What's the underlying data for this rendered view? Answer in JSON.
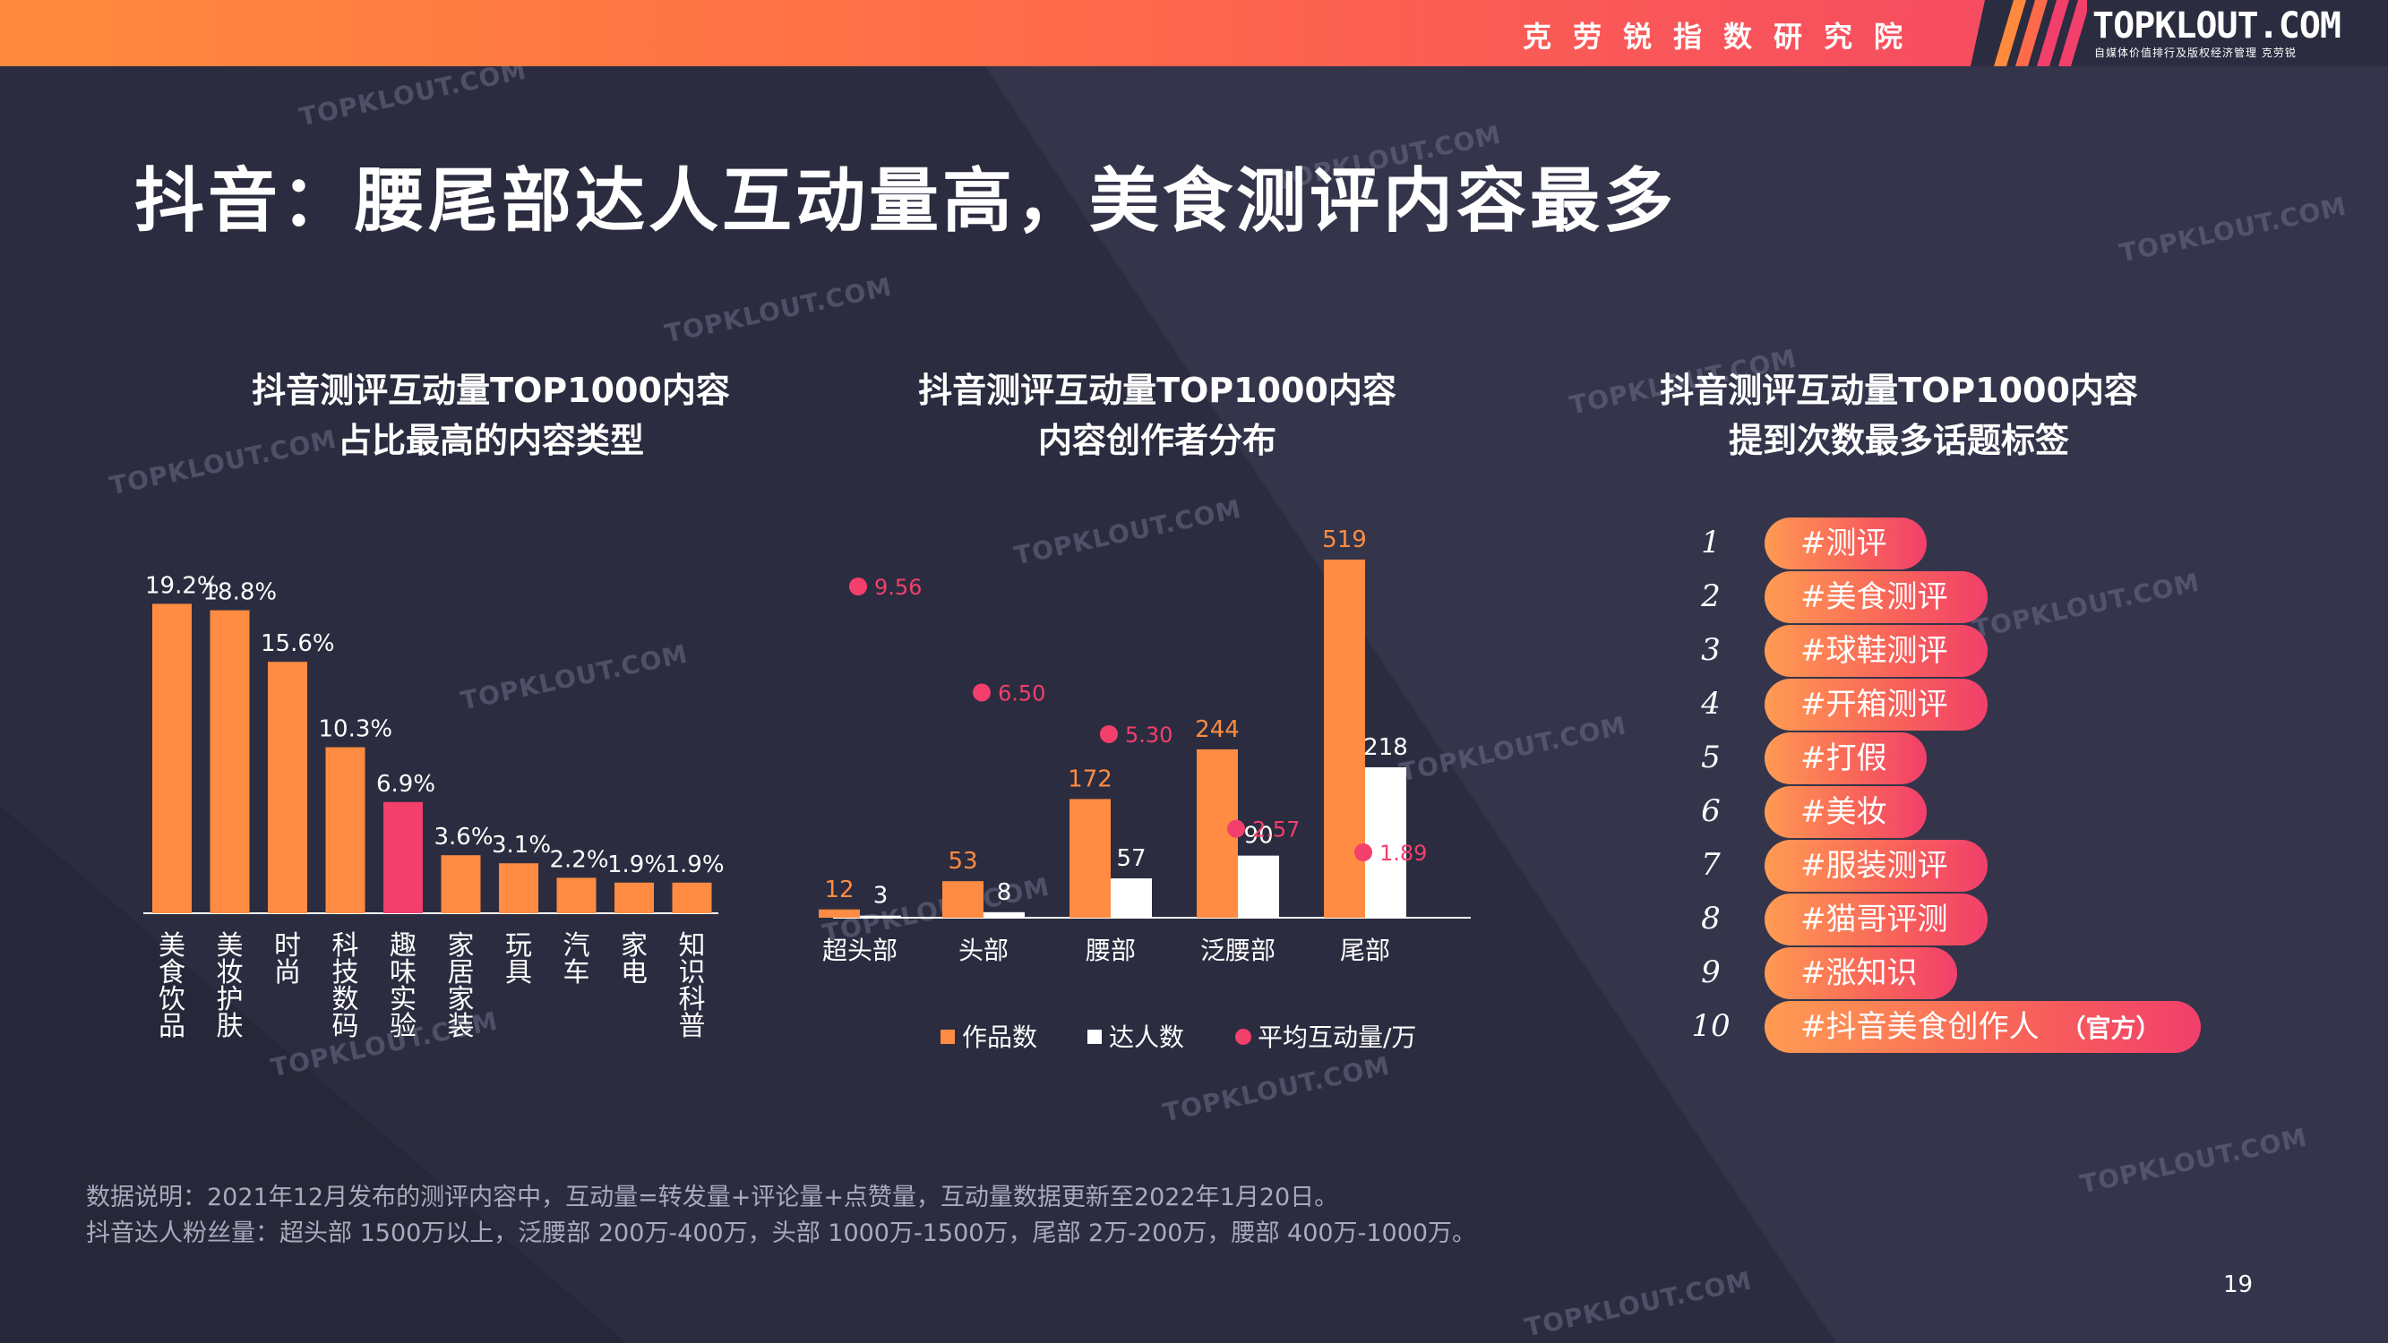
{
  "header": {
    "org_name": "克劳锐指数研究院",
    "logo_text": "TOPKLOUT.COM",
    "logo_sub": "自媒体价值排行及版权经济管理 克劳锐"
  },
  "title": "抖音：腰尾部达人互动量高，美食测评内容最多",
  "watermark_text": "TOPKLOUT.COM",
  "colors": {
    "orange": "#ff8c42",
    "pink": "#f23f6b",
    "white": "#ffffff",
    "background": "#2b2c3f"
  },
  "chart_data": [
    {
      "type": "bar",
      "title": "抖音测评互动量TOP1000内容\n占比最高的内容类型",
      "categories": [
        "美食饮品",
        "美妆护肤",
        "时尚",
        "科技数码",
        "趣味实验",
        "家居家装",
        "玩具",
        "汽车",
        "家电",
        "知识科普"
      ],
      "values": [
        19.2,
        18.8,
        15.6,
        10.3,
        6.9,
        3.6,
        3.1,
        2.2,
        1.9,
        1.9
      ],
      "value_labels": [
        "19.2%",
        "18.8%",
        "15.6%",
        "10.3%",
        "6.9%",
        "3.6%",
        "3.1%",
        "2.2%",
        "1.9%",
        "1.9%"
      ],
      "highlight_index": 4,
      "ylim": [
        0,
        20
      ],
      "grid": false
    },
    {
      "type": "bar",
      "title": "抖音测评互动量TOP1000内容\n内容创作者分布",
      "categories": [
        "超头部",
        "头部",
        "腰部",
        "泛腰部",
        "尾部"
      ],
      "series": [
        {
          "name": "作品数",
          "values": [
            12,
            53,
            172,
            244,
            519
          ]
        },
        {
          "name": "达人数",
          "values": [
            3,
            8,
            57,
            90,
            218
          ]
        },
        {
          "name": "平均互动量/万",
          "type": "scatter",
          "values": [
            9.56,
            6.5,
            5.3,
            2.57,
            1.89
          ],
          "labels": [
            "9.56",
            "6.50",
            "5.30",
            "2.57",
            "1.89"
          ]
        }
      ],
      "ylim": [
        0,
        519
      ],
      "legend": "bottom",
      "grid": false
    },
    {
      "type": "table",
      "title": "抖音测评互动量TOP1000内容\n提到次数最多话题标签",
      "rows": [
        {
          "rank": "1",
          "tag": "#测评"
        },
        {
          "rank": "2",
          "tag": "#美食测评"
        },
        {
          "rank": "3",
          "tag": "#球鞋测评"
        },
        {
          "rank": "4",
          "tag": "#开箱测评"
        },
        {
          "rank": "5",
          "tag": "#打假"
        },
        {
          "rank": "6",
          "tag": "#美妆"
        },
        {
          "rank": "7",
          "tag": "#服装测评"
        },
        {
          "rank": "8",
          "tag": "#猫哥评测"
        },
        {
          "rank": "9",
          "tag": "#涨知识"
        },
        {
          "rank": "10",
          "tag": "#抖音美食创作人",
          "badge": "（官方）"
        }
      ]
    }
  ],
  "notes": {
    "line1": "数据说明：2021年12月发布的测评内容中，互动量=转发量+评论量+点赞量，互动量数据更新至2022年1月20日。",
    "line2": "抖音达人粉丝量：超头部 1500万以上，泛腰部 200万-400万，头部 1000万-1500万，尾部 2万-200万，腰部 400万-1000万。"
  },
  "page_number": "19"
}
